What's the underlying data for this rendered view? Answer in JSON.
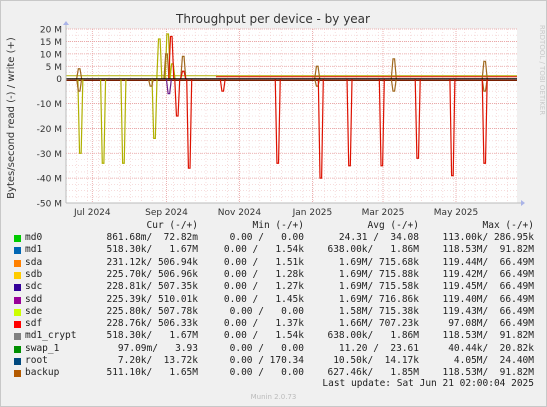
{
  "chart_data": {
    "type": "line",
    "title": "Throughput per device - by year",
    "ylabel": "Bytes/second read (-) / write (+)",
    "side_label": "RRDTOOL / TOBI OETIKER",
    "ylim": [
      -50,
      20
    ],
    "y_unit": "M",
    "yticks": [
      {
        "value": 20,
        "label": "20 M"
      },
      {
        "value": 15,
        "label": "15 M"
      },
      {
        "value": 10,
        "label": "10 M"
      },
      {
        "value": 5,
        "label": "5 M"
      },
      {
        "value": 0,
        "label": "0"
      },
      {
        "value": -10,
        "label": "-10 M"
      },
      {
        "value": -20,
        "label": "-20 M"
      },
      {
        "value": -30,
        "label": "-30 M"
      },
      {
        "value": -40,
        "label": "-40 M"
      },
      {
        "value": -50,
        "label": "-50 M"
      }
    ],
    "xlim": [
      "2024-06-09",
      "2025-06-21"
    ],
    "xticks": [
      {
        "date": "2024-07-01",
        "label": "Jul 2024"
      },
      {
        "date": "2024-09-01",
        "label": "Sep 2024"
      },
      {
        "date": "2024-11-01",
        "label": "Nov 2024"
      },
      {
        "date": "2025-01-01",
        "label": "Jan 2025"
      },
      {
        "date": "2025-03-01",
        "label": "Mar 2025"
      },
      {
        "date": "2025-05-01",
        "label": "May 2025"
      }
    ],
    "series": [
      {
        "name": "sda/sdb (olive)",
        "color": "#b0b000",
        "read_spikes": [
          [
            "2024-06-21",
            -30
          ],
          [
            "2024-07-10",
            -34
          ],
          [
            "2024-07-27",
            -34
          ],
          [
            "2024-08-22",
            -24
          ]
        ],
        "write_spikes": [
          [
            "2024-08-26",
            16
          ],
          [
            "2024-09-02",
            18
          ],
          [
            "2024-09-06",
            6
          ]
        ]
      },
      {
        "name": "backup (brown)",
        "color": "#a0681e",
        "read_spikes": [
          [
            "2024-06-20",
            -5
          ],
          [
            "2024-08-19",
            -3
          ],
          [
            "2025-01-05",
            -3
          ],
          [
            "2025-03-10",
            -5
          ],
          [
            "2025-05-25",
            -5
          ]
        ],
        "write_spikes": [
          [
            "2024-06-20",
            4
          ],
          [
            "2024-09-01",
            10
          ],
          [
            "2024-09-15",
            9
          ],
          [
            "2025-01-05",
            5
          ],
          [
            "2025-03-10",
            8
          ],
          [
            "2025-05-25",
            7
          ]
        ]
      },
      {
        "name": "sdf (red)",
        "color": "#dd1100",
        "read_spikes": [
          [
            "2024-09-10",
            -15
          ],
          [
            "2024-09-20",
            -36
          ],
          [
            "2024-10-18",
            -5
          ],
          [
            "2024-12-03",
            -34
          ],
          [
            "2025-01-08",
            -40
          ],
          [
            "2025-02-01",
            -35
          ],
          [
            "2025-02-28",
            -35
          ],
          [
            "2025-03-30",
            -32
          ],
          [
            "2025-04-28",
            -39
          ],
          [
            "2025-05-25",
            -34
          ]
        ],
        "write_spikes": [
          [
            "2024-09-05",
            17
          ],
          [
            "2024-09-15",
            3
          ]
        ]
      },
      {
        "name": "sdd (purple)",
        "color": "#6b1f8a",
        "read_spikes": [
          [
            "2024-09-03",
            -6
          ]
        ],
        "write_spikes": []
      }
    ],
    "legend_headers": [
      "Cur (-/+)",
      "Min (-/+)",
      "Avg (-/+)",
      "Max (-/+)"
    ],
    "legend": [
      {
        "name": "md0",
        "color": "#00cc00",
        "cur": "861.68m/  72.82m",
        "min": "0.00 /   0.00",
        "avg": "24.31 /  34.08",
        "max": "113.00k/ 286.95k"
      },
      {
        "name": "md1",
        "color": "#0066b3",
        "cur": "518.30k/   1.67M",
        "min": "0.00 /   1.54k",
        "avg": "638.00k/   1.86M",
        "max": "118.53M/  91.82M"
      },
      {
        "name": "sda",
        "color": "#ff8000",
        "cur": "231.12k/ 506.94k",
        "min": "0.00 /   1.51k",
        "avg": "1.69M/ 715.68k",
        "max": "119.44M/  66.49M"
      },
      {
        "name": "sdb",
        "color": "#ffcc00",
        "cur": "225.70k/ 506.96k",
        "min": "0.00 /   1.28k",
        "avg": "1.69M/ 715.88k",
        "max": "119.42M/  66.49M"
      },
      {
        "name": "sdc",
        "color": "#330099",
        "cur": "228.81k/ 507.35k",
        "min": "0.00 /   1.27k",
        "avg": "1.69M/ 715.58k",
        "max": "119.45M/  66.49M"
      },
      {
        "name": "sdd",
        "color": "#990099",
        "cur": "225.39k/ 510.01k",
        "min": "0.00 /   1.45k",
        "avg": "1.69M/ 716.86k",
        "max": "119.40M/  66.49M"
      },
      {
        "name": "sde",
        "color": "#ccff00",
        "cur": "225.80k/ 507.78k",
        "min": "0.00 /   0.00",
        "avg": "1.58M/ 715.38k",
        "max": "119.43M/  66.49M"
      },
      {
        "name": "sdf",
        "color": "#ff0000",
        "cur": "228.76k/ 506.33k",
        "min": "0.00 /   1.37k",
        "avg": "1.66M/ 707.23k",
        "max": "97.08M/  66.49M"
      },
      {
        "name": "md1_crypt",
        "color": "#808080",
        "cur": "518.30k/   1.67M",
        "min": "0.00 /   1.54k",
        "avg": "638.00k/   1.86M",
        "max": "118.53M/  91.82M"
      },
      {
        "name": "swap_1",
        "color": "#008f00",
        "cur": "97.09m/   3.93",
        "min": "0.00 /   0.00",
        "avg": "11.20 /  23.61",
        "max": "40.44k/  20.82k"
      },
      {
        "name": "root",
        "color": "#00487d",
        "cur": "7.20k/  13.72k",
        "min": "0.00 / 170.34",
        "avg": "10.50k/  14.17k",
        "max": "4.05M/  24.40M"
      },
      {
        "name": "backup",
        "color": "#b35a00",
        "cur": "511.10k/   1.65M",
        "min": "0.00 /   0.00",
        "avg": "627.46k/   1.85M",
        "max": "118.53M/  91.82M"
      }
    ],
    "last_update": "Last update: Sat Jun 21 02:00:04 2025",
    "footer": "Munin 2.0.73"
  }
}
